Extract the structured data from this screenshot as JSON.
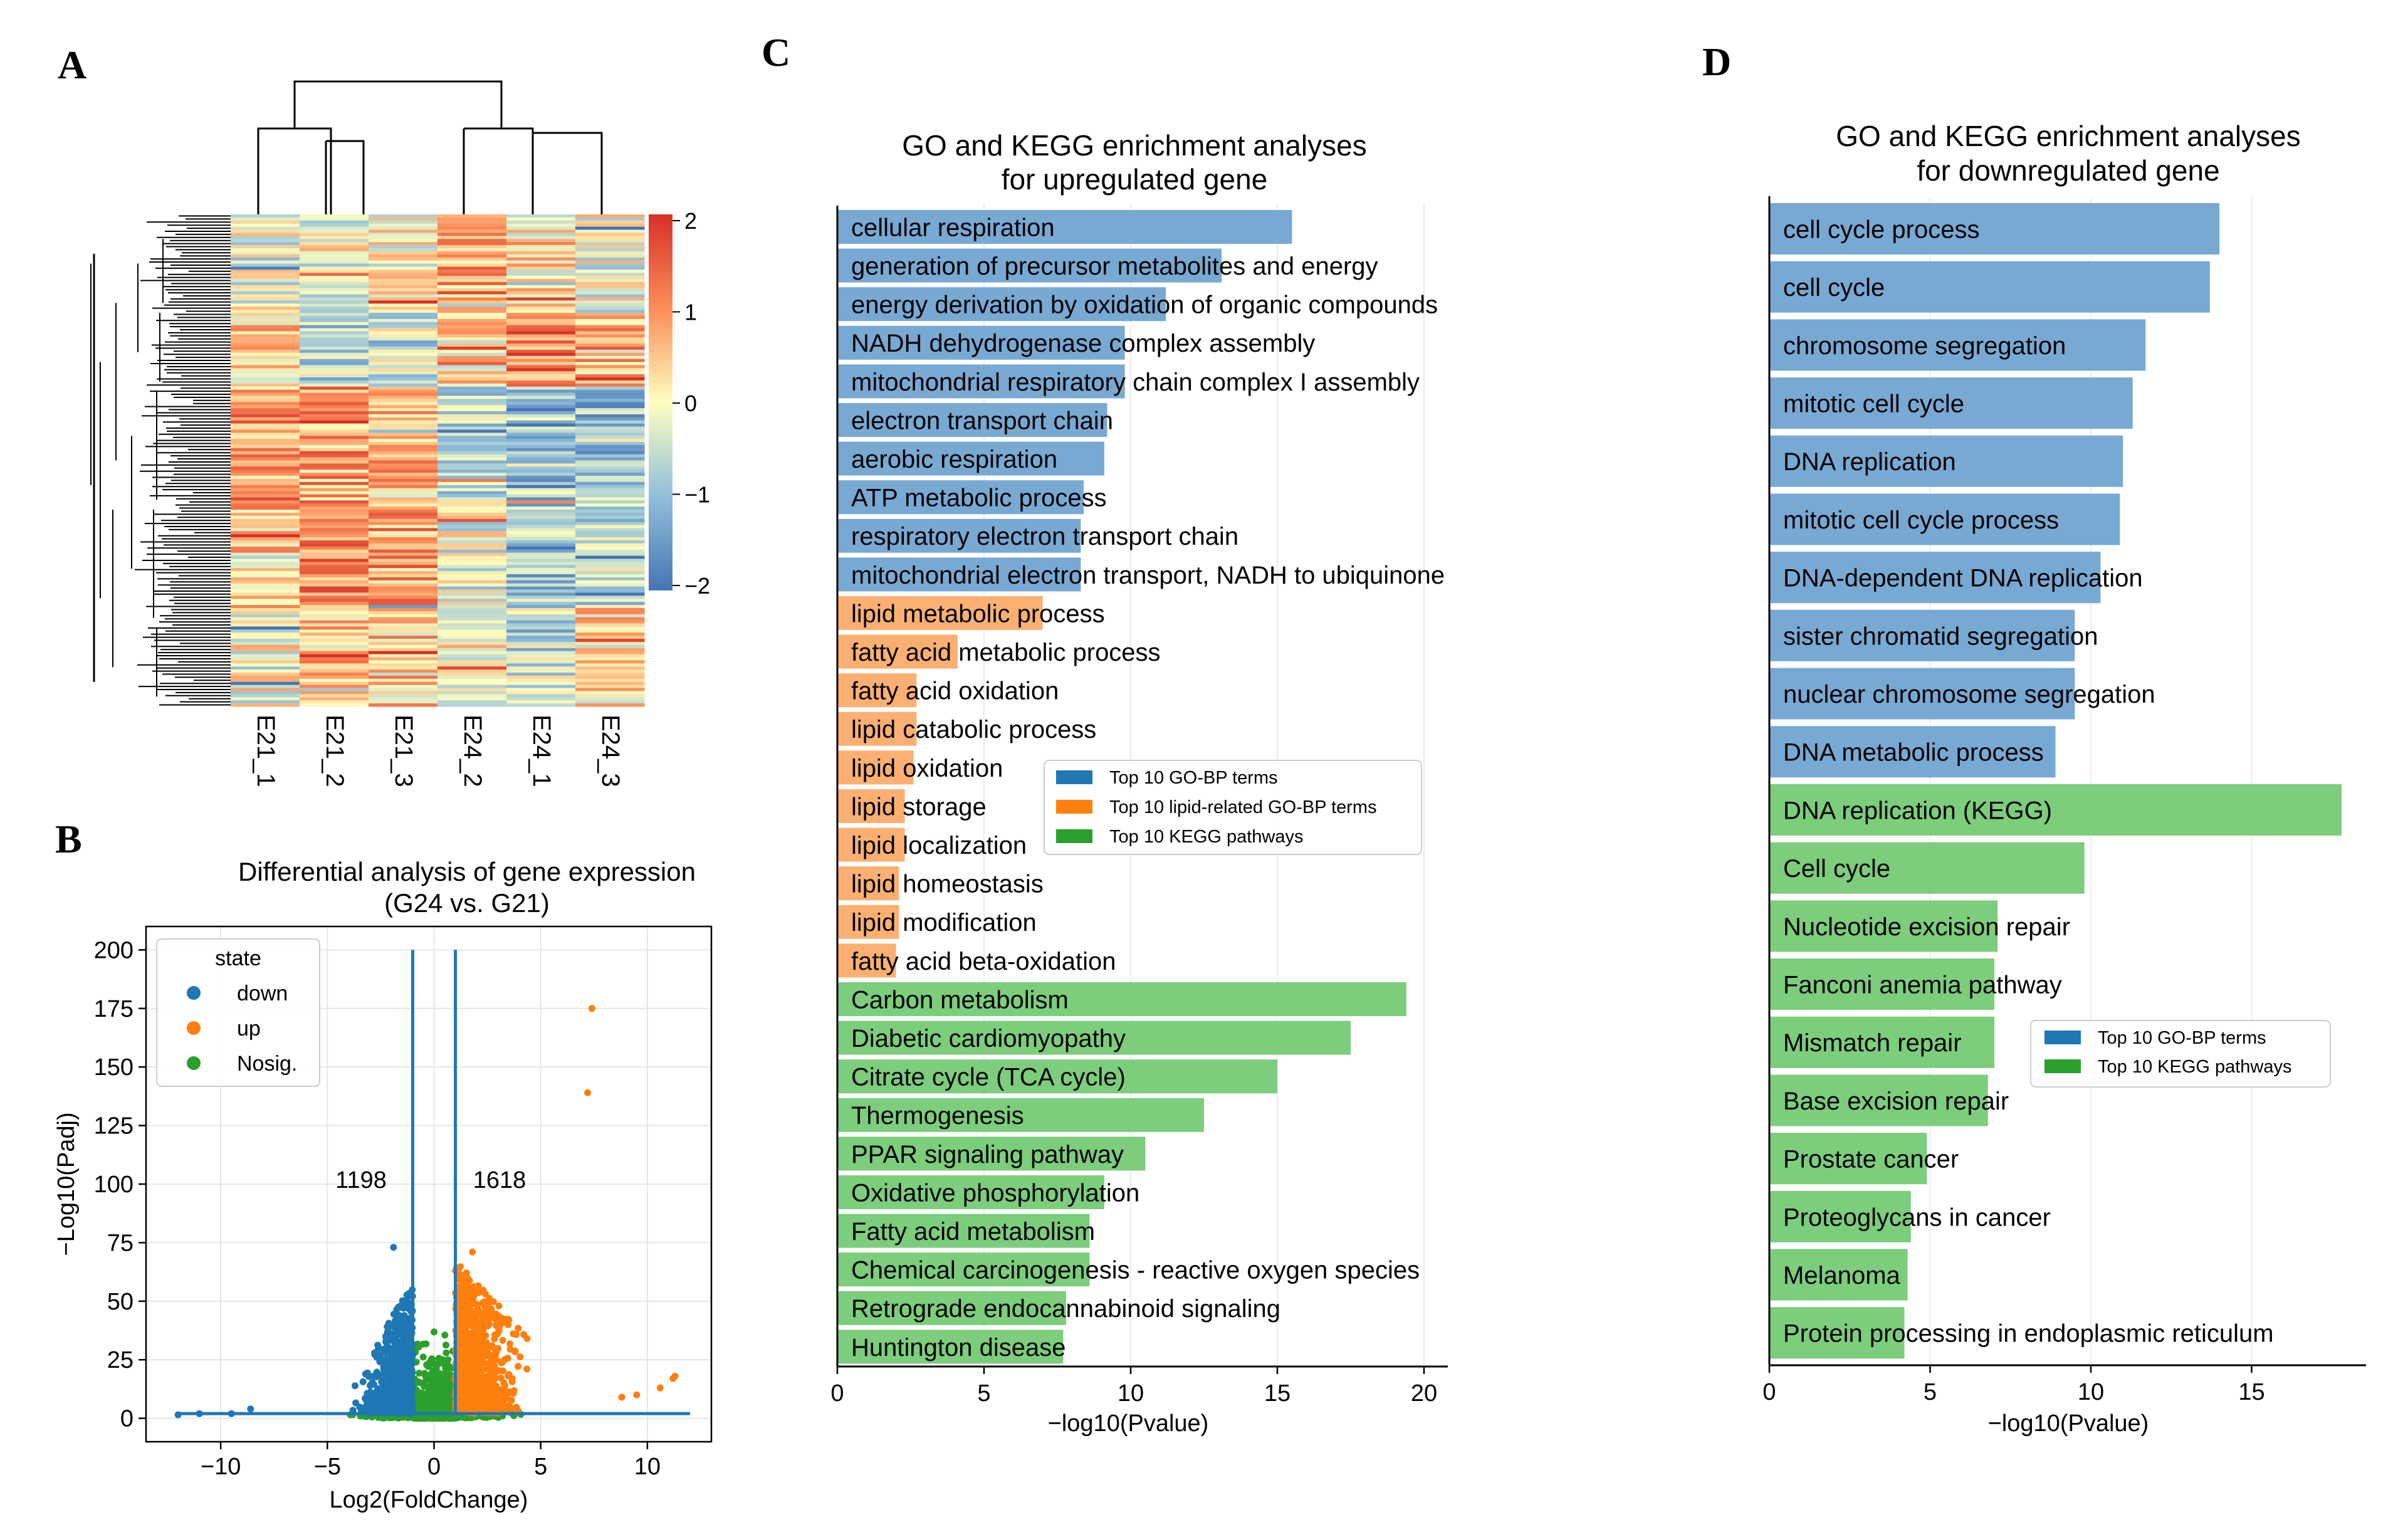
{
  "panel_labels": {
    "a": "A",
    "b": "B",
    "c": "C",
    "d": "D"
  },
  "colors": {
    "go_bp": "#78a9d3",
    "lipid": "#fbb072",
    "kegg": "#7ccd7c",
    "down": "#1f77b4",
    "up": "#ff7f0e",
    "nosig": "#2ca02c",
    "legend_blue": "#1f77b4",
    "legend_orange": "#ff7f0e",
    "legend_green": "#2ca02c"
  },
  "chart_data": [
    {
      "panel": "A",
      "type": "heatmap",
      "columns": [
        "E21_1",
        "E21_2",
        "E21_3",
        "E24_2",
        "E24_1",
        "E24_3"
      ],
      "colorbar": {
        "ticks": [
          2,
          1,
          0,
          -1,
          -2
        ],
        "tick_labels": [
          "2",
          "1",
          "0",
          "−1",
          "−2"
        ],
        "vmin": -2,
        "vmax": 2,
        "colormap": "RdYlBu_r"
      },
      "column_dendrogram": {
        "clusters": [
          [
            "E21_1",
            [
              "E21_2",
              "E21_3"
            ]
          ],
          [
            [
              "E24_2"
            ],
            [
              "E24_1",
              "E24_3"
            ]
          ]
        ]
      },
      "row_dendrogram": true
    },
    {
      "panel": "B",
      "type": "scatter",
      "title_line1": "Differential analysis of gene expression",
      "title_line2": "(G24 vs. G21)",
      "xlabel": "Log2(FoldChange)",
      "ylabel": "−Log10(Padj)",
      "xlim": [
        -13.5,
        13
      ],
      "ylim": [
        -10,
        210
      ],
      "xticks": [
        -10,
        -5,
        0,
        5,
        10
      ],
      "xtick_labels": [
        "−10",
        "−5",
        "0",
        "5",
        "10"
      ],
      "yticks": [
        0,
        25,
        50,
        75,
        100,
        125,
        150,
        175,
        200
      ],
      "ytick_labels": [
        "0",
        "25",
        "50",
        "75",
        "100",
        "125",
        "150",
        "175",
        "200"
      ],
      "grid": true,
      "legend": {
        "title": "state",
        "entries": [
          "down",
          "up",
          "Nosig."
        ],
        "position": "top-left"
      },
      "threshold_lines": [
        -1,
        1
      ],
      "baseline_y": 2,
      "count_down": "1198",
      "count_up": "1618",
      "notable_points": [
        {
          "x": 7.4,
          "y": 175,
          "state": "up"
        },
        {
          "x": 7.2,
          "y": 139,
          "state": "up"
        },
        {
          "x": -1.9,
          "y": 73,
          "state": "down"
        },
        {
          "x": 1.8,
          "y": 71,
          "state": "up"
        }
      ]
    },
    {
      "panel": "C",
      "type": "bar",
      "orientation": "horizontal",
      "title_line1": "GO and KEGG enrichment analyses",
      "title_line2": "for upregulated gene",
      "xlabel": "−log10(Pvalue)",
      "xlim": [
        0,
        21
      ],
      "xticks": [
        0,
        5,
        10,
        15,
        20
      ],
      "legend": {
        "entries": [
          "Top 10 GO-BP terms",
          "Top 10 lipid-related GO-BP terms",
          "Top 10 KEGG pathways"
        ],
        "position": "center-right"
      },
      "categories": [
        "cellular respiration",
        "generation of precursor metabolites and energy",
        "energy derivation by oxidation of organic compounds",
        "NADH dehydrogenase complex assembly",
        "mitochondrial respiratory chain complex I assembly",
        "electron transport chain",
        "aerobic respiration",
        "ATP metabolic process",
        "respiratory electron transport chain",
        "mitochondrial electron transport, NADH to ubiquinone",
        "lipid metabolic process",
        "fatty acid metabolic process",
        "fatty acid oxidation",
        "lipid catabolic process",
        "lipid oxidation",
        "lipid storage",
        "lipid localization",
        "lipid homeostasis",
        "lipid modification",
        "fatty acid beta-oxidation",
        "Carbon metabolism",
        "Diabetic cardiomyopathy",
        "Citrate cycle (TCA cycle)",
        "Thermogenesis",
        "PPAR signaling pathway",
        "Oxidative phosphorylation",
        "Fatty acid metabolism",
        "Chemical carcinogenesis - reactive oxygen species",
        "Retrograde endocannabinoid signaling",
        "Huntington disease"
      ],
      "values": [
        15.5,
        13.1,
        11.2,
        9.8,
        9.8,
        9.2,
        9.1,
        8.4,
        8.3,
        8.3,
        7.0,
        4.1,
        2.7,
        2.7,
        2.6,
        2.3,
        2.3,
        2.1,
        2.1,
        2.0,
        19.4,
        17.5,
        15.0,
        12.5,
        10.5,
        9.1,
        8.6,
        8.6,
        7.8,
        7.7
      ],
      "groups": [
        "go_bp",
        "go_bp",
        "go_bp",
        "go_bp",
        "go_bp",
        "go_bp",
        "go_bp",
        "go_bp",
        "go_bp",
        "go_bp",
        "lipid",
        "lipid",
        "lipid",
        "lipid",
        "lipid",
        "lipid",
        "lipid",
        "lipid",
        "lipid",
        "lipid",
        "kegg",
        "kegg",
        "kegg",
        "kegg",
        "kegg",
        "kegg",
        "kegg",
        "kegg",
        "kegg",
        "kegg"
      ]
    },
    {
      "panel": "D",
      "type": "bar",
      "orientation": "horizontal",
      "title_line1": "GO and KEGG enrichment analyses",
      "title_line2": "for downregulated gene",
      "xlabel": "−log10(Pvalue)",
      "xlim": [
        0,
        18.6
      ],
      "xticks": [
        0,
        5,
        10,
        15
      ],
      "legend": {
        "entries": [
          "Top 10 GO-BP terms",
          "Top 10 KEGG pathways"
        ],
        "position": "center-right"
      },
      "categories": [
        "cell cycle process",
        "cell cycle",
        "chromosome segregation",
        "mitotic cell cycle",
        "DNA replication",
        "mitotic cell cycle process",
        "DNA-dependent DNA replication",
        "sister chromatid segregation",
        "nuclear chromosome segregation",
        "DNA metabolic process",
        "DNA replication (KEGG)",
        "Cell cycle",
        "Nucleotide excision repair",
        "Fanconi anemia pathway",
        "Mismatch repair",
        "Base excision repair",
        "Prostate cancer",
        "Proteoglycans in cancer",
        "Melanoma",
        "Protein processing in endoplasmic reticulum"
      ],
      "values": [
        14.0,
        13.7,
        11.7,
        11.3,
        11.0,
        10.9,
        10.3,
        9.5,
        9.5,
        8.9,
        17.8,
        9.8,
        7.1,
        7.0,
        7.0,
        6.8,
        4.9,
        4.4,
        4.3,
        4.2
      ],
      "groups": [
        "go_bp",
        "go_bp",
        "go_bp",
        "go_bp",
        "go_bp",
        "go_bp",
        "go_bp",
        "go_bp",
        "go_bp",
        "go_bp",
        "kegg",
        "kegg",
        "kegg",
        "kegg",
        "kegg",
        "kegg",
        "kegg",
        "kegg",
        "kegg",
        "kegg"
      ]
    }
  ]
}
